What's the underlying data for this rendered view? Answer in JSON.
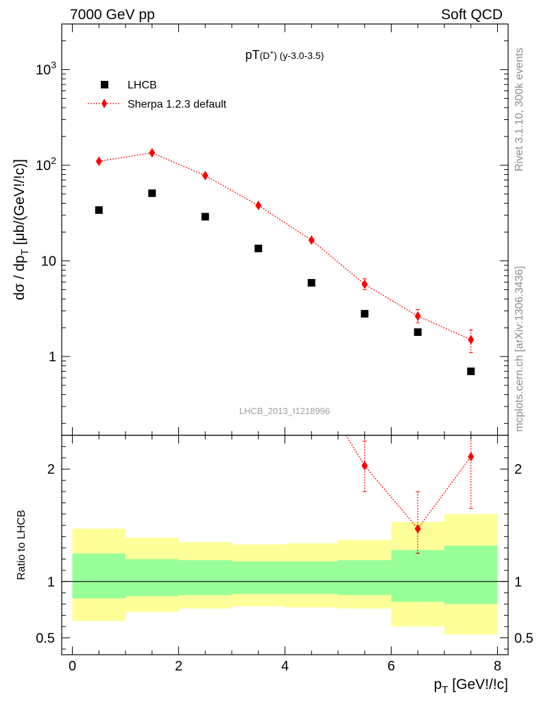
{
  "header": {
    "left": "7000 GeV pp",
    "right": "Soft QCD"
  },
  "side_labels": {
    "rivet": "Rivet 3.1.10,  300k events",
    "mcplots": "mcplots.cern.ch [arXiv:1306.3436]"
  },
  "watermark": "LHCB_2013_I1218996",
  "chart_data": [
    {
      "type": "scatter",
      "title_main": "pT",
      "title_particle": "(D",
      "title_sup": "+",
      "title_close": ")",
      "title_range": " (y-3.0-3.5)",
      "ylabel_main": "dσ / dp",
      "ylabel_sub": "T",
      "ylabel_unit": " [μb/(GeV!/!c)]",
      "yscale": "log",
      "ylim": [
        0.15,
        3000
      ],
      "xlim": [
        -0.2,
        8.2
      ],
      "y_ticks": [
        {
          "value": 1,
          "label": "1",
          "sup": ""
        },
        {
          "value": 10,
          "label": "10",
          "sup": ""
        },
        {
          "value": 100,
          "label": "10",
          "sup": "2"
        },
        {
          "value": 1000,
          "label": "10",
          "sup": "3"
        }
      ],
      "series": [
        {
          "name": "LHCB",
          "marker": "square",
          "color": "#000000",
          "x": [
            0.5,
            1.5,
            2.5,
            3.5,
            4.5,
            5.5,
            6.5,
            7.5
          ],
          "y": [
            34,
            51,
            29,
            13.5,
            5.9,
            2.8,
            1.8,
            0.7
          ]
        },
        {
          "name": "Sherpa 1.2.3 default",
          "marker": "diamond",
          "line": "dotted",
          "color": "#ff0000",
          "x": [
            0.5,
            1.5,
            2.5,
            3.5,
            4.5,
            5.5,
            6.5,
            7.5
          ],
          "y": [
            110,
            135,
            78,
            38,
            16.5,
            5.7,
            2.65,
            1.5
          ],
          "y_err_low": [
            104,
            129,
            75,
            36,
            15.5,
            5.0,
            2.25,
            1.1
          ],
          "y_err_high": [
            116,
            141,
            82,
            40,
            17.5,
            6.5,
            3.1,
            1.9
          ]
        }
      ]
    },
    {
      "type": "ratio",
      "ylabel": "Ratio to LHCB",
      "ylim": [
        0.35,
        2.3
      ],
      "xlim": [
        -0.2,
        8.2
      ],
      "x_ticks": [
        0,
        2,
        4,
        6,
        8
      ],
      "y_ticks": [
        {
          "value": 0.5,
          "label": "0.5"
        },
        {
          "value": 1,
          "label": "1"
        },
        {
          "value": 2,
          "label": "2"
        }
      ],
      "xlabel_main": "p",
      "xlabel_sub": "T",
      "xlabel_unit": " [GeV!/!c]",
      "bands": [
        {
          "x0": 0,
          "x1": 1,
          "green_low": 0.85,
          "green_high": 1.25,
          "yellow_low": 0.65,
          "yellow_high": 1.47
        },
        {
          "x0": 1,
          "x1": 2,
          "green_low": 0.87,
          "green_high": 1.2,
          "yellow_low": 0.73,
          "yellow_high": 1.39
        },
        {
          "x0": 2,
          "x1": 3,
          "green_low": 0.88,
          "green_high": 1.19,
          "yellow_low": 0.76,
          "yellow_high": 1.35
        },
        {
          "x0": 3,
          "x1": 4,
          "green_low": 0.89,
          "green_high": 1.18,
          "yellow_low": 0.78,
          "yellow_high": 1.33
        },
        {
          "x0": 4,
          "x1": 5,
          "green_low": 0.89,
          "green_high": 1.18,
          "yellow_low": 0.77,
          "yellow_high": 1.34
        },
        {
          "x0": 5,
          "x1": 6,
          "green_low": 0.88,
          "green_high": 1.19,
          "yellow_low": 0.76,
          "yellow_high": 1.37
        },
        {
          "x0": 6,
          "x1": 7,
          "green_low": 0.82,
          "green_high": 1.28,
          "yellow_low": 0.6,
          "yellow_high": 1.53
        },
        {
          "x0": 7,
          "x1": 8,
          "green_low": 0.8,
          "green_high": 1.32,
          "yellow_low": 0.53,
          "yellow_high": 1.6
        }
      ],
      "series": [
        {
          "name": "Sherpa 1.2.3 default",
          "color": "#ff0000",
          "x": [
            4.5,
            5.5,
            6.5,
            7.5
          ],
          "y": [
            2.8,
            2.03,
            1.47,
            2.11
          ],
          "y_err_low": [
            2.6,
            1.8,
            1.25,
            1.65
          ],
          "y_err_high": [
            3.0,
            2.25,
            1.8,
            2.5
          ]
        }
      ]
    }
  ]
}
